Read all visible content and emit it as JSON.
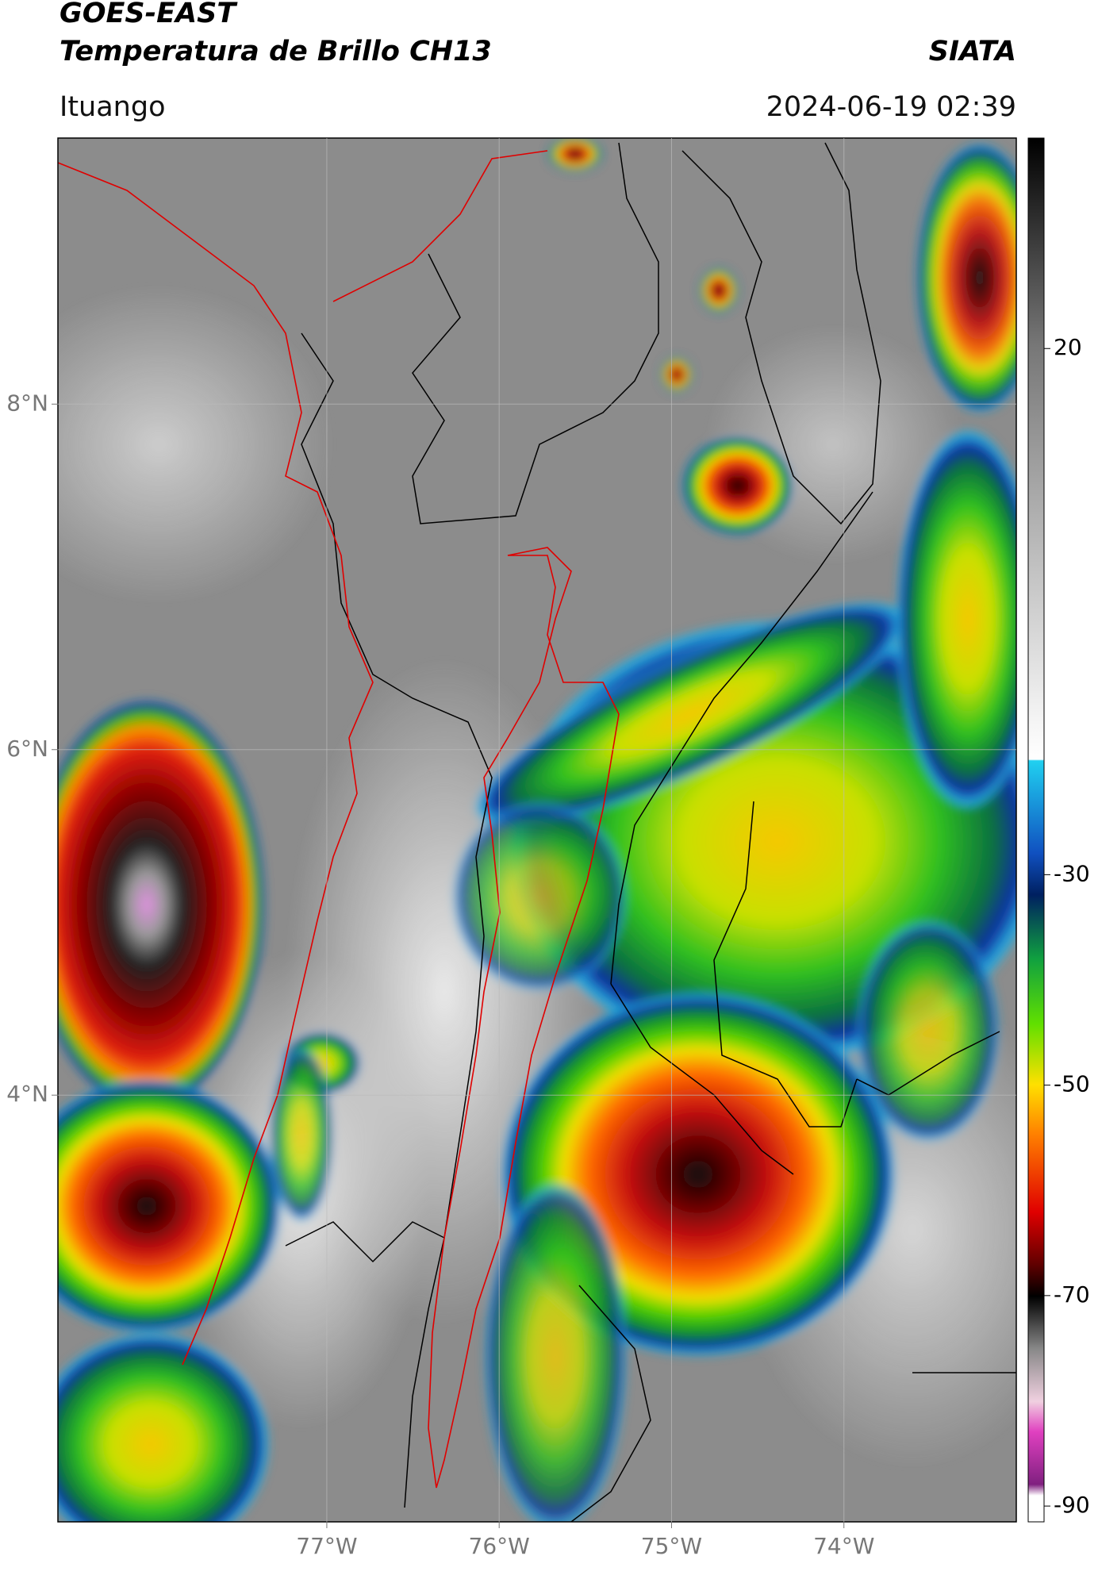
{
  "header": {
    "title_line1": "GOES-EAST",
    "title_line2": "Temperatura de Brillo CH13",
    "agency": "SIATA",
    "location": "Ituango",
    "datetime": "2024-06-19 02:39"
  },
  "map": {
    "xlim": [
      -78.56,
      -73.0
    ],
    "ylim": [
      1.53,
      9.54
    ],
    "xticks": [
      {
        "value": -77,
        "label": "77°W"
      },
      {
        "value": -76,
        "label": "76°W"
      },
      {
        "value": -75,
        "label": "75°W"
      },
      {
        "value": -74,
        "label": "74°W"
      }
    ],
    "yticks": [
      {
        "value": 8,
        "label": "8°N"
      },
      {
        "value": 6,
        "label": "6°N"
      },
      {
        "value": 4,
        "label": "4°N"
      }
    ],
    "grid": true
  },
  "colorbar": {
    "lim": [
      -91.5,
      40
    ],
    "ticks": [
      20,
      -30,
      -50,
      -70,
      -90
    ]
  }
}
